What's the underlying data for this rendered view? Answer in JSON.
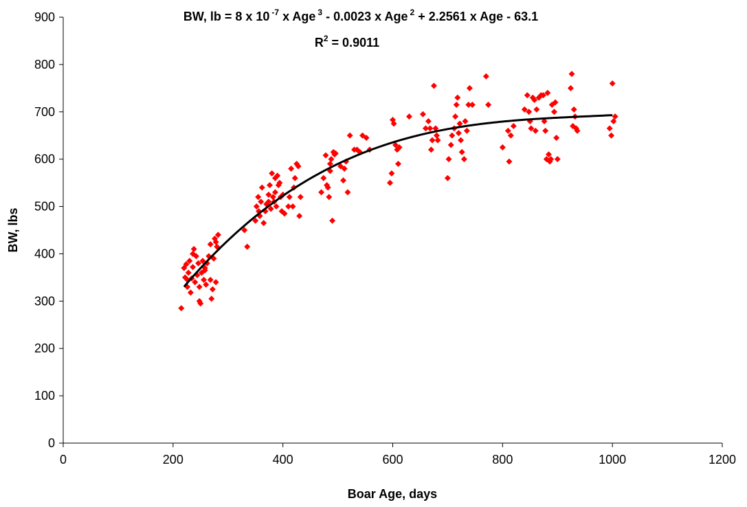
{
  "chart_data": {
    "type": "scatter",
    "xlabel": "Boar Age, days",
    "ylabel": "BW, lbs",
    "xlim": [
      0,
      1200
    ],
    "ylim": [
      0,
      900
    ],
    "xticks": [
      "0",
      "200",
      "400",
      "600",
      "800",
      "1000",
      "1200"
    ],
    "yticks": [
      "0",
      "100",
      "200",
      "300",
      "400",
      "500",
      "600",
      "700",
      "800",
      "900"
    ],
    "grid": false,
    "legend": "none",
    "marker_color": "#ff0000",
    "trend_color": "#000000",
    "equation": {
      "lhs": "BW, lb = 8 x 10",
      "exp1": "-7",
      "part2": " x Age",
      "exp2": "3",
      "part3": " - 0.0023 x Age",
      "exp3": "2",
      "part4": " + 2.2561 x Age - 63.1",
      "r2_prefix": "R",
      "r2_exp": "2",
      "r2_value": " = 0.9011"
    },
    "trendline": {
      "type": "polynomial",
      "coefficients": [
        -63.1,
        2.2561,
        -0.0023,
        8e-07
      ],
      "x_range": [
        220,
        1003
      ]
    },
    "series": [
      {
        "points": [
          [
            215,
            285
          ],
          [
            220,
            370
          ],
          [
            222,
            350
          ],
          [
            224,
            378
          ],
          [
            226,
            330
          ],
          [
            228,
            360
          ],
          [
            230,
            385
          ],
          [
            232,
            318
          ],
          [
            234,
            348
          ],
          [
            236,
            372
          ],
          [
            238,
            410
          ],
          [
            240,
            340
          ],
          [
            242,
            395
          ],
          [
            244,
            355
          ],
          [
            246,
            380
          ],
          [
            248,
            300
          ],
          [
            250,
            295
          ],
          [
            252,
            360
          ],
          [
            254,
            385
          ],
          [
            256,
            345
          ],
          [
            258,
            370
          ],
          [
            260,
            335
          ],
          [
            262,
            380
          ],
          [
            265,
            395
          ],
          [
            268,
            420
          ],
          [
            270,
            305
          ],
          [
            272,
            325
          ],
          [
            274,
            390
          ],
          [
            276,
            432
          ],
          [
            278,
            340
          ],
          [
            280,
            415
          ],
          [
            282,
            440
          ],
          [
            226,
            345
          ],
          [
            236,
            400
          ],
          [
            248,
            330
          ],
          [
            258,
            365
          ],
          [
            268,
            345
          ],
          [
            278,
            425
          ],
          [
            330,
            450
          ],
          [
            335,
            415
          ],
          [
            350,
            470
          ],
          [
            352,
            500
          ],
          [
            355,
            520
          ],
          [
            358,
            480
          ],
          [
            360,
            510
          ],
          [
            362,
            540
          ],
          [
            365,
            465
          ],
          [
            368,
            490
          ],
          [
            370,
            505
          ],
          [
            374,
            525
          ],
          [
            376,
            545
          ],
          [
            378,
            495
          ],
          [
            380,
            570
          ],
          [
            382,
            520
          ],
          [
            384,
            510
          ],
          [
            386,
            530
          ],
          [
            388,
            500
          ],
          [
            390,
            565
          ],
          [
            392,
            545
          ],
          [
            394,
            550
          ],
          [
            396,
            520
          ],
          [
            398,
            490
          ],
          [
            400,
            525
          ],
          [
            403,
            485
          ],
          [
            410,
            500
          ],
          [
            412,
            520
          ],
          [
            415,
            580
          ],
          [
            418,
            500
          ],
          [
            420,
            540
          ],
          [
            422,
            560
          ],
          [
            425,
            590
          ],
          [
            428,
            585
          ],
          [
            430,
            480
          ],
          [
            432,
            520
          ],
          [
            386,
            560
          ],
          [
            374,
            510
          ],
          [
            356,
            490
          ],
          [
            470,
            530
          ],
          [
            474,
            560
          ],
          [
            478,
            608
          ],
          [
            482,
            540
          ],
          [
            484,
            520
          ],
          [
            486,
            575
          ],
          [
            488,
            600
          ],
          [
            490,
            470
          ],
          [
            492,
            615
          ],
          [
            494,
            610
          ],
          [
            496,
            612
          ],
          [
            480,
            545
          ],
          [
            486,
            590
          ],
          [
            505,
            585
          ],
          [
            510,
            555
          ],
          [
            512,
            580
          ],
          [
            515,
            595
          ],
          [
            518,
            530
          ],
          [
            522,
            650
          ],
          [
            530,
            620
          ],
          [
            535,
            620
          ],
          [
            540,
            615
          ],
          [
            545,
            650
          ],
          [
            552,
            645
          ],
          [
            558,
            620
          ],
          [
            595,
            550
          ],
          [
            598,
            570
          ],
          [
            600,
            683
          ],
          [
            602,
            675
          ],
          [
            605,
            630
          ],
          [
            608,
            620
          ],
          [
            610,
            590
          ],
          [
            612,
            625
          ],
          [
            630,
            690
          ],
          [
            655,
            695
          ],
          [
            660,
            665
          ],
          [
            665,
            680
          ],
          [
            668,
            665
          ],
          [
            670,
            620
          ],
          [
            672,
            640
          ],
          [
            675,
            755
          ],
          [
            678,
            665
          ],
          [
            680,
            650
          ],
          [
            682,
            640
          ],
          [
            700,
            560
          ],
          [
            702,
            600
          ],
          [
            706,
            630
          ],
          [
            708,
            650
          ],
          [
            712,
            665
          ],
          [
            714,
            690
          ],
          [
            716,
            715
          ],
          [
            718,
            730
          ],
          [
            720,
            655
          ],
          [
            722,
            675
          ],
          [
            724,
            640
          ],
          [
            726,
            615
          ],
          [
            730,
            600
          ],
          [
            732,
            680
          ],
          [
            735,
            660
          ],
          [
            738,
            715
          ],
          [
            740,
            750
          ],
          [
            745,
            715
          ],
          [
            770,
            775
          ],
          [
            774,
            715
          ],
          [
            800,
            625
          ],
          [
            810,
            660
          ],
          [
            812,
            595
          ],
          [
            815,
            650
          ],
          [
            820,
            670
          ],
          [
            840,
            705
          ],
          [
            845,
            735
          ],
          [
            848,
            700
          ],
          [
            850,
            680
          ],
          [
            852,
            665
          ],
          [
            855,
            730
          ],
          [
            858,
            725
          ],
          [
            860,
            660
          ],
          [
            862,
            705
          ],
          [
            866,
            730
          ],
          [
            870,
            735
          ],
          [
            874,
            735
          ],
          [
            876,
            680
          ],
          [
            878,
            660
          ],
          [
            880,
            600
          ],
          [
            882,
            740
          ],
          [
            884,
            610
          ],
          [
            886,
            595
          ],
          [
            888,
            600
          ],
          [
            890,
            715
          ],
          [
            894,
            700
          ],
          [
            896,
            720
          ],
          [
            898,
            645
          ],
          [
            900,
            600
          ],
          [
            924,
            750
          ],
          [
            926,
            780
          ],
          [
            928,
            670
          ],
          [
            930,
            705
          ],
          [
            932,
            690
          ],
          [
            934,
            665
          ],
          [
            936,
            660
          ],
          [
            995,
            665
          ],
          [
            998,
            650
          ],
          [
            1000,
            760
          ],
          [
            1002,
            680
          ],
          [
            1005,
            690
          ]
        ]
      }
    ]
  }
}
